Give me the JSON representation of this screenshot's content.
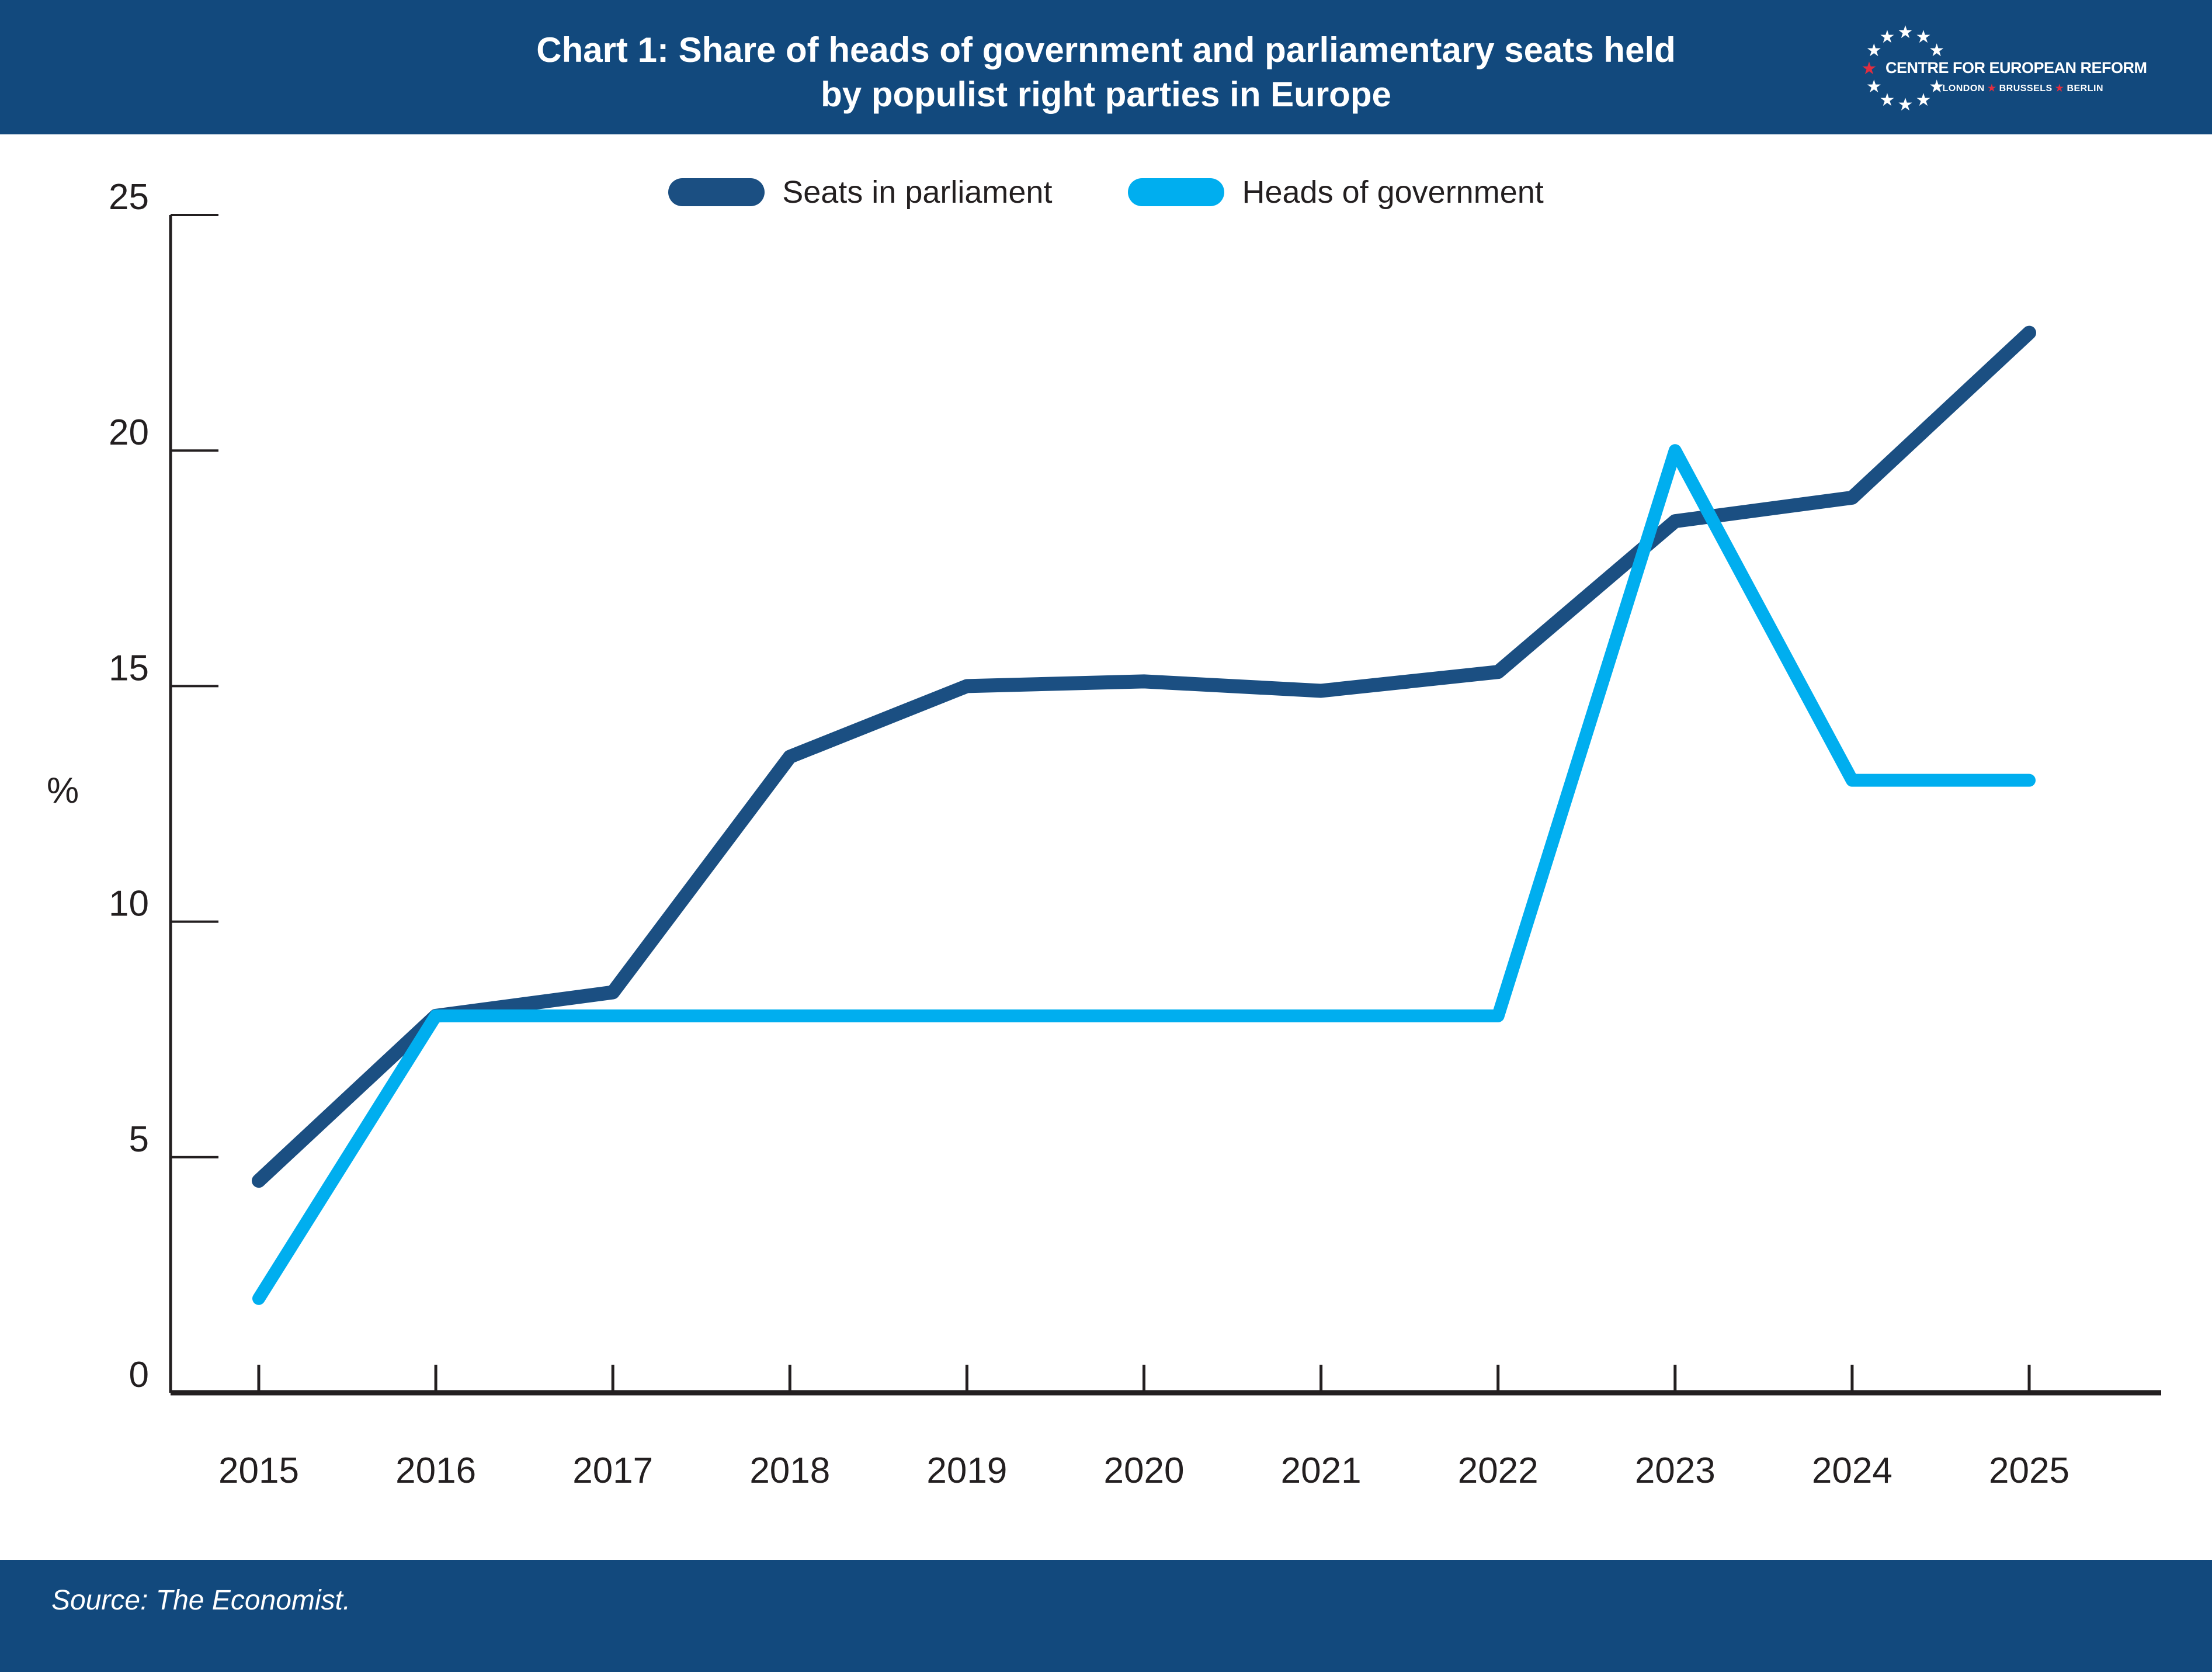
{
  "header": {
    "title_line1": "Chart 1: Share of heads of government and parliamentary seats held",
    "title_line2": "by populist right parties in Europe",
    "bar_color": "#12497D"
  },
  "logo": {
    "org_name": "CENTRE FOR EUROPEAN REFORM",
    "cities": [
      "LONDON",
      "BRUSSELS",
      "BERLIN"
    ],
    "star_glyph": "★",
    "star_color_white": "#FFFFFF",
    "star_color_red": "#E02E40"
  },
  "chart_data": {
    "type": "line",
    "title": "Chart 1: Share of heads of government and parliamentary seats held by populist right parties in Europe",
    "categories": [
      "2015",
      "2016",
      "2017",
      "2018",
      "2019",
      "2020",
      "2021",
      "2022",
      "2023",
      "2024",
      "2025"
    ],
    "series": [
      {
        "name": "Seats in parliament",
        "color": "#1B4F82",
        "values": [
          4.5,
          8,
          8.5,
          13.5,
          15,
          15.1,
          14.9,
          15.3,
          18.5,
          19,
          22.5
        ]
      },
      {
        "name": "Heads of government",
        "color": "#00AEEF",
        "values": [
          2,
          8,
          8,
          8,
          8,
          8,
          8,
          8,
          20,
          13,
          13
        ]
      }
    ],
    "xlabel": "",
    "ylabel": "%",
    "ylim": [
      0,
      25
    ],
    "yticks": [
      0,
      5,
      10,
      15,
      20,
      25
    ],
    "grid": false,
    "legend_position": "top-center",
    "axis_color": "#231F20"
  },
  "footer": {
    "source": "Source: The Economist."
  }
}
